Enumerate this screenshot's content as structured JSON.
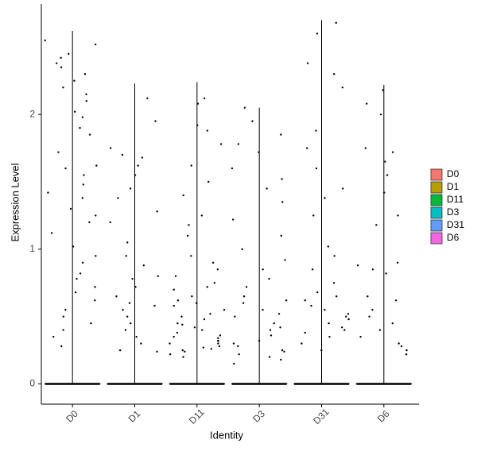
{
  "chart_data": {
    "type": "violin",
    "y_label": "Expression Level",
    "x_label": "Identity",
    "ylim": [
      -0.15,
      2.82
    ],
    "yticks": [
      0,
      1,
      2
    ],
    "legend_position": "right",
    "series": [
      {
        "name": "D0",
        "color": "#F8766D",
        "max": 2.62,
        "values": [
          2.55,
          2.52,
          2.42,
          2.38,
          2.3,
          2.25,
          2.2,
          2.15,
          2.1,
          2.02,
          1.98,
          1.9,
          1.85,
          1.72,
          1.6,
          1.55,
          1.48,
          1.42,
          1.38,
          1.3,
          1.25,
          1.2,
          1.12,
          1.02,
          0.95,
          0.9,
          0.82,
          0.78,
          0.72,
          0.62,
          0.55,
          0.5,
          0.45,
          0.4,
          0.35,
          0.28,
          2.45,
          2.35,
          1.62,
          0.68
        ]
      },
      {
        "name": "D1",
        "color": "#B79F00",
        "max": 2.23,
        "values": [
          2.12,
          1.95,
          1.75,
          1.7,
          1.62,
          1.55,
          1.45,
          1.38,
          1.28,
          1.2,
          1.05,
          0.95,
          0.88,
          0.8,
          0.72,
          0.65,
          0.6,
          0.55,
          0.5,
          0.45,
          0.4,
          0.35,
          0.3,
          0.25,
          0.24,
          0.78,
          0.58,
          1.68
        ]
      },
      {
        "name": "D11",
        "color": "#00BA38",
        "max": 2.24,
        "values": [
          2.12,
          2.08,
          1.92,
          1.88,
          1.78,
          1.62,
          1.5,
          1.4,
          1.25,
          1.18,
          1.1,
          0.95,
          0.9,
          0.85,
          0.8,
          0.75,
          0.7,
          0.65,
          0.62,
          0.58,
          0.55,
          0.5,
          0.48,
          0.45,
          0.42,
          0.4,
          0.38,
          0.36,
          0.34,
          0.32,
          0.3,
          0.28,
          0.26,
          0.24,
          0.22,
          0.2,
          0.35,
          0.3,
          0.27,
          0.44,
          0.52,
          0.6,
          0.72,
          0.25,
          0.32
        ]
      },
      {
        "name": "D3",
        "color": "#00BFC4",
        "max": 2.05,
        "values": [
          2.05,
          1.95,
          1.85,
          1.78,
          1.72,
          1.6,
          1.52,
          1.45,
          1.35,
          1.22,
          1.1,
          1.0,
          0.92,
          0.85,
          0.78,
          0.72,
          0.65,
          0.6,
          0.55,
          0.5,
          0.45,
          0.4,
          0.36,
          0.32,
          0.3,
          0.28,
          0.25,
          0.22,
          0.2,
          0.18,
          0.15,
          0.42,
          0.52,
          0.62,
          0.24
        ]
      },
      {
        "name": "D31",
        "color": "#619CFF",
        "max": 2.7,
        "values": [
          2.68,
          2.6,
          2.38,
          2.3,
          2.2,
          1.88,
          1.75,
          1.6,
          1.45,
          1.38,
          1.25,
          1.02,
          0.95,
          0.85,
          0.75,
          0.68,
          0.62,
          0.58,
          0.52,
          0.48,
          0.45,
          0.42,
          0.4,
          0.38,
          0.35,
          0.3,
          0.25,
          0.55,
          0.65,
          0.5
        ]
      },
      {
        "name": "D6",
        "color": "#F564E3",
        "max": 2.22,
        "values": [
          2.18,
          2.08,
          2.0,
          1.75,
          1.72,
          1.65,
          1.55,
          1.42,
          1.25,
          1.18,
          0.9,
          0.88,
          0.85,
          0.82,
          0.65,
          0.62,
          0.55,
          0.5,
          0.45,
          0.4,
          0.35,
          0.3,
          0.28,
          0.25,
          0.22
        ]
      }
    ]
  }
}
